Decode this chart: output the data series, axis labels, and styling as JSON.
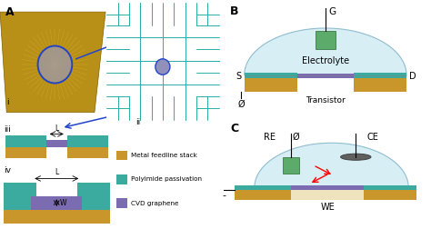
{
  "panel_A_label": "A",
  "panel_B_label": "B",
  "panel_C_label": "C",
  "panel_i_label": "i",
  "panel_ii_label": "ii",
  "panel_iii_label": "iii",
  "panel_iv_label": "iv",
  "legend_items": [
    "Metal feedline stack",
    "Polyimide passivation",
    "CVD graphene"
  ],
  "legend_colors": [
    "#C8962A",
    "#3BABA0",
    "#7B6BB0"
  ],
  "metal_color": "#C8962A",
  "polyimide_color": "#3BABA0",
  "graphene_color": "#7B6BB0",
  "electrolyte_color": "#D8EEF5",
  "electrolyte_border": "#90BDD0",
  "gate_color": "#5DAB6A",
  "circuit_color": "#2AADA5",
  "bg_color": "#FFFFFF",
  "transistor_label": "Transistor",
  "electrolyte_label": "Electrolyte",
  "we_label": "WE",
  "re_label": "RE",
  "ce_label": "CE",
  "g_label": "G",
  "s_label": "S",
  "d_label": "D",
  "ground_symbol": "Ø",
  "chip_gold": "#C8A830",
  "chip_gold_dark": "#906000",
  "chip_line_color": "#A08020",
  "chip_circle_color": "#2244CC",
  "chip_inner_color": "#9090B8",
  "substrate_color": "#E8D8A0",
  "ce_disk_color": "#606060"
}
